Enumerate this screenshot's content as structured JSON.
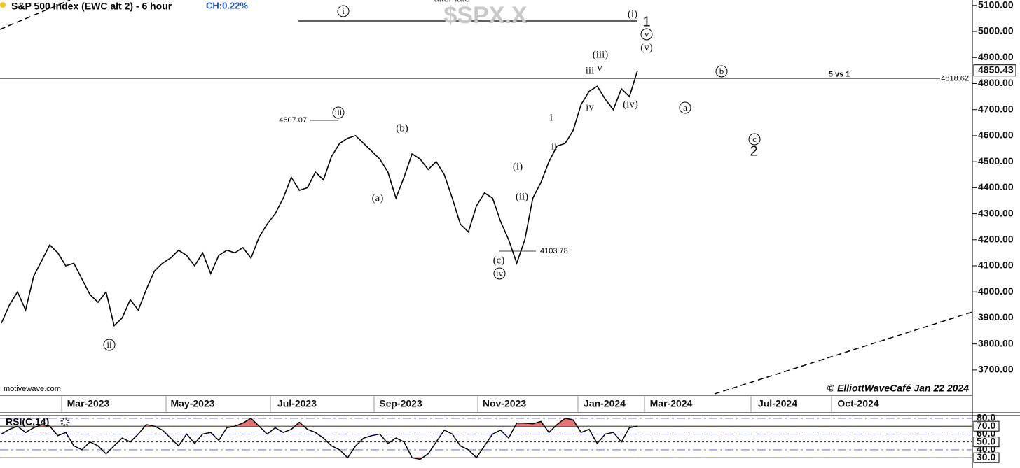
{
  "chart_data": {
    "type": "line",
    "title": "S&P 500 Index (EWC alt 2) - 6 hour",
    "change": "CH:0.22%",
    "watermark": "$SPX.X",
    "watermark_caption": "alternate",
    "source": "motivewave.com",
    "credit": "© ElliottWaveCafé Jan 22 2024",
    "color": "#000000",
    "values": [
      3880,
      3950,
      4000,
      3930,
      4060,
      4120,
      4180,
      4150,
      4100,
      4110,
      4050,
      3990,
      3960,
      4000,
      3870,
      3900,
      3970,
      3930,
      4010,
      4080,
      4110,
      4130,
      4160,
      4140,
      4100,
      4150,
      4070,
      4140,
      4160,
      4150,
      4170,
      4130,
      4210,
      4260,
      4300,
      4360,
      4440,
      4390,
      4400,
      4460,
      4430,
      4520,
      4570,
      4590,
      4600,
      4570,
      4540,
      4510,
      4460,
      4360,
      4440,
      4530,
      4510,
      4470,
      4500,
      4450,
      4360,
      4260,
      4230,
      4330,
      4380,
      4360,
      4270,
      4200,
      4110,
      4200,
      4360,
      4420,
      4500,
      4560,
      4570,
      4620,
      4720,
      4770,
      4790,
      4740,
      4700,
      4780,
      4750,
      4850
    ],
    "ylim": [
      3603,
      5121
    ],
    "yticks": [
      {
        "value": 3700,
        "label": "3700.00"
      },
      {
        "value": 3800,
        "label": "3800.00"
      },
      {
        "value": 3900,
        "label": "3900.00"
      },
      {
        "value": 4000,
        "label": "4000.00"
      },
      {
        "value": 4100,
        "label": "4100.00"
      },
      {
        "value": 4200,
        "label": "4200.00"
      },
      {
        "value": 4300,
        "label": "4300.00"
      },
      {
        "value": 4400,
        "label": "4400.00"
      },
      {
        "value": 4500,
        "label": "4500.00"
      },
      {
        "value": 4600,
        "label": "4600.00"
      },
      {
        "value": 4700,
        "label": "4700.00"
      },
      {
        "value": 4800,
        "label": "4800.00"
      },
      {
        "value": 4900,
        "label": "4900.00"
      },
      {
        "value": 5000,
        "label": "5000.00"
      },
      {
        "value": 5100,
        "label": "5100.00"
      }
    ],
    "x_axis_labels": [
      "Mar-2023",
      "May-2023",
      "Jul-2023",
      "Sep-2023",
      "Nov-2023",
      "Jan-2024",
      "Mar-2024",
      "Jul-2024",
      "Oct-2024"
    ],
    "last_price": 4850.43,
    "reference_line": {
      "value": 4818.62,
      "text": "5 vs 1"
    },
    "level_labels": [
      4607.07,
      4103.78
    ],
    "annotations": [
      "i",
      "(i)",
      "1",
      "v",
      "(v)",
      "(iii)",
      "v",
      "iii",
      "iv",
      "(iv)",
      "i",
      "ii",
      "(i)",
      "(ii)",
      "(c)",
      "iv",
      "ii",
      "iii",
      "(b)",
      "(a)",
      "b",
      "a",
      "c",
      "2"
    ],
    "rsi": {
      "title": "RSI(C,14)",
      "color": "#000000",
      "values": [
        60,
        66,
        70,
        62,
        68,
        72,
        70,
        58,
        62,
        45,
        40,
        50,
        45,
        35,
        45,
        55,
        50,
        60,
        72,
        70,
        65,
        55,
        45,
        60,
        48,
        60,
        62,
        52,
        68,
        70,
        74,
        80,
        70,
        60,
        68,
        62,
        66,
        75,
        66,
        62,
        55,
        45,
        40,
        30,
        45,
        55,
        58,
        60,
        48,
        55,
        50,
        30,
        28,
        35,
        50,
        65,
        60,
        45,
        40,
        30,
        45,
        60,
        65,
        55,
        74,
        74,
        73,
        76,
        62,
        72,
        80,
        78,
        62,
        66,
        48,
        60,
        62,
        50,
        68,
        70
      ],
      "ylim": [
        18.6,
        83.5
      ],
      "yticks": [
        {
          "value": 30,
          "label": "30.0"
        },
        {
          "value": 40,
          "label": "40.0"
        },
        {
          "value": 50,
          "label": "50.0"
        },
        {
          "value": 60,
          "label": "60.0"
        },
        {
          "value": 70,
          "label": "70.0"
        },
        {
          "value": 80,
          "label": "80.0"
        }
      ],
      "overbought": 70,
      "oversold": 30
    }
  }
}
